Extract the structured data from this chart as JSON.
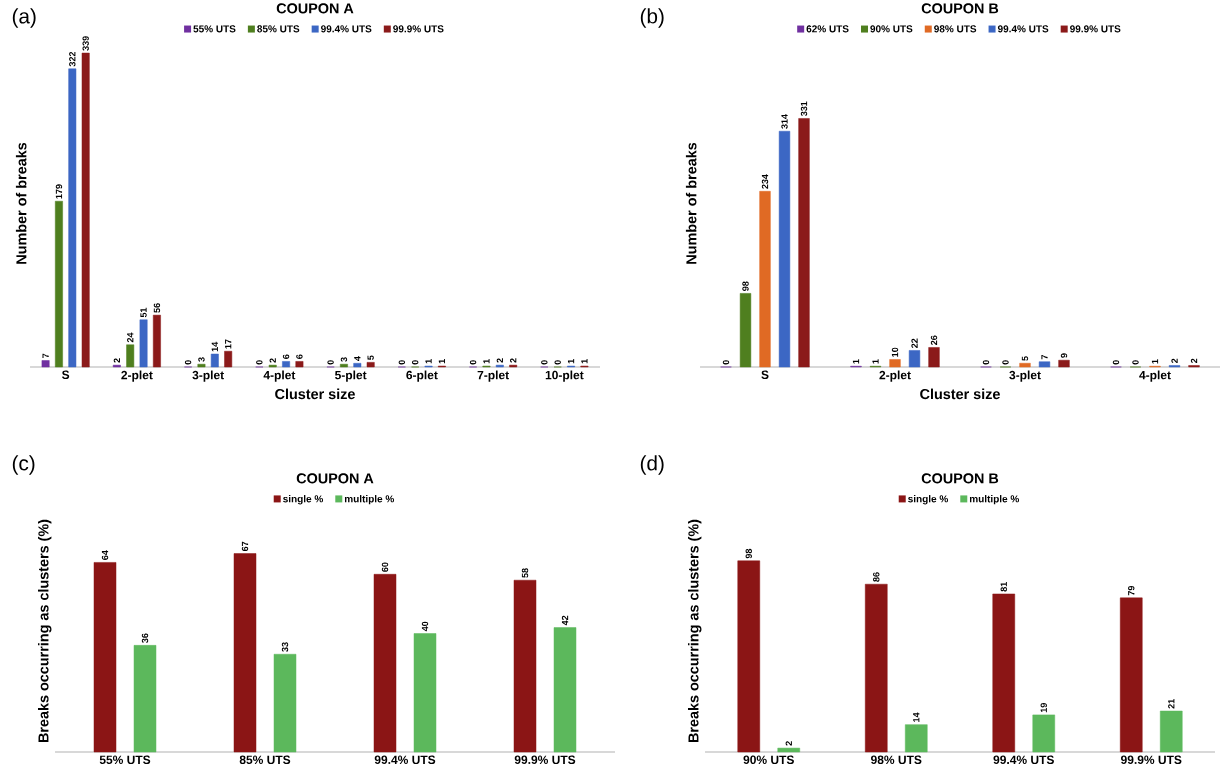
{
  "chart_data": [
    {
      "type": "bar",
      "title": "COUPON A",
      "xlabel": "Cluster size",
      "ylabel": "Number of breaks",
      "annotations": [
        "(a)"
      ],
      "categories": [
        "S",
        "2-plet",
        "3-plet",
        "4-plet",
        "5-plet",
        "6-plet",
        "7-plet",
        "10-plet"
      ],
      "data_labels": true,
      "legend": "top",
      "series": [
        {
          "name": "55% UTS",
          "color": "#7030a0",
          "values": [
            7,
            2,
            0,
            0,
            0,
            0,
            0,
            0
          ]
        },
        {
          "name": "85% UTS",
          "color": "#4f7f1f",
          "values": [
            179,
            24,
            3,
            2,
            3,
            0,
            1,
            0
          ]
        },
        {
          "name": "99.4% UTS",
          "color": "#3c67c4",
          "values": [
            322,
            51,
            14,
            6,
            4,
            1,
            2,
            1
          ]
        },
        {
          "name": "99.9% UTS",
          "color": "#8b1a1a",
          "values": [
            339,
            56,
            17,
            6,
            5,
            1,
            2,
            1
          ]
        }
      ]
    },
    {
      "type": "bar",
      "title": "COUPON B",
      "xlabel": "Cluster size",
      "ylabel": "Number of breaks",
      "annotations": [
        "(b)"
      ],
      "categories": [
        "S",
        "2-plet",
        "3-plet",
        "4-plet"
      ],
      "data_labels": true,
      "legend": "top",
      "series": [
        {
          "name": "62% UTS",
          "color": "#7030a0",
          "values": [
            0,
            1,
            0,
            0
          ]
        },
        {
          "name": "90% UTS",
          "color": "#4f7f1f",
          "values": [
            98,
            1,
            0,
            0
          ]
        },
        {
          "name": "98% UTS",
          "color": "#e06a24",
          "values": [
            234,
            10,
            5,
            1
          ]
        },
        {
          "name": "99.4% UTS",
          "color": "#3c67c4",
          "values": [
            314,
            22,
            7,
            2
          ]
        },
        {
          "name": "99.9% UTS",
          "color": "#8b1a1a",
          "values": [
            331,
            26,
            9,
            2
          ]
        }
      ]
    },
    {
      "type": "bar",
      "title": "COUPON A",
      "ylabel": "Breaks occurring as clusters (%)",
      "annotations": [
        "(c)"
      ],
      "categories": [
        "55% UTS",
        "85% UTS",
        "99.4% UTS",
        "99.9% UTS"
      ],
      "data_labels": true,
      "legend": "top",
      "series": [
        {
          "name": "single %",
          "color": "#8b1515",
          "values": [
            64,
            67,
            60,
            58
          ]
        },
        {
          "name": "multiple %",
          "color": "#5cb85c",
          "values": [
            36,
            33,
            40,
            42
          ]
        }
      ]
    },
    {
      "type": "bar",
      "title": "COUPON B",
      "ylabel": "Breaks occurring as clusters (%)",
      "annotations": [
        "(d)"
      ],
      "categories": [
        "90% UTS",
        "98% UTS",
        "99.4% UTS",
        "99.9% UTS"
      ],
      "data_labels": true,
      "legend": "top",
      "series": [
        {
          "name": "single %",
          "color": "#8b1515",
          "values": [
            98,
            86,
            81,
            79
          ]
        },
        {
          "name": "multiple %",
          "color": "#5cb85c",
          "values": [
            2,
            14,
            19,
            21
          ]
        }
      ]
    }
  ]
}
